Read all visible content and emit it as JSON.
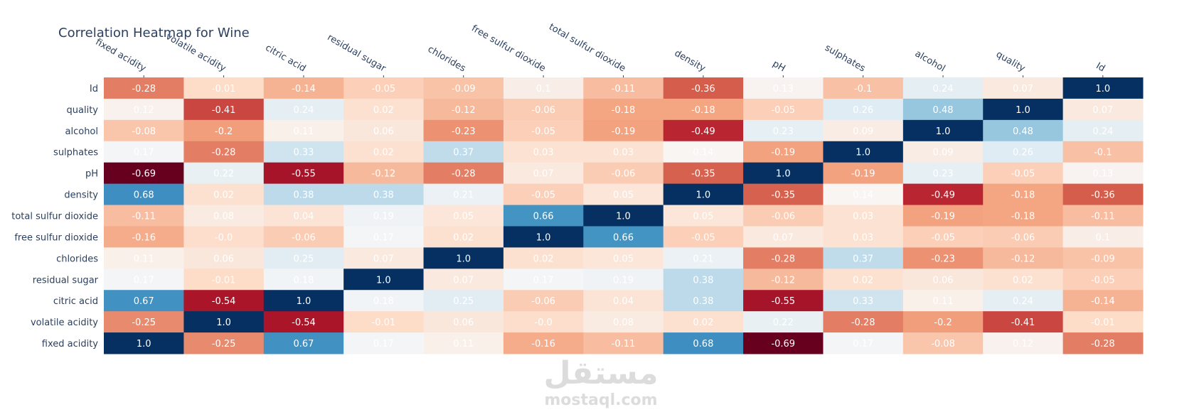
{
  "chart_data": {
    "type": "heatmap",
    "title": "Correlation Heatmap for Wine",
    "xlabel": "",
    "ylabel": "",
    "x": [
      "fixed acidity",
      "volatile acidity",
      "citric acid",
      "residual sugar",
      "chlorides",
      "free sulfur dioxide",
      "total sulfur dioxide",
      "density",
      "pH",
      "sulphates",
      "alcohol",
      "quality",
      "Id"
    ],
    "y": [
      "Id",
      "quality",
      "alcohol",
      "sulphates",
      "pH",
      "density",
      "total sulfur dioxide",
      "free sulfur dioxide",
      "chlorides",
      "residual sugar",
      "citric acid",
      "volatile acidity",
      "fixed acidity"
    ],
    "z": [
      [
        -0.28,
        -0.01,
        -0.14,
        -0.05,
        -0.09,
        0.1,
        -0.11,
        -0.36,
        0.13,
        -0.1,
        0.24,
        0.07,
        1.0
      ],
      [
        0.12,
        -0.41,
        0.24,
        0.02,
        -0.12,
        -0.06,
        -0.18,
        -0.18,
        -0.05,
        0.26,
        0.48,
        1.0,
        0.07
      ],
      [
        -0.08,
        -0.2,
        0.11,
        0.06,
        -0.23,
        -0.05,
        -0.19,
        -0.49,
        0.23,
        0.09,
        1.0,
        0.48,
        0.24
      ],
      [
        0.17,
        -0.28,
        0.33,
        0.02,
        0.37,
        0.03,
        0.03,
        0.14,
        -0.19,
        1.0,
        0.09,
        0.26,
        -0.1
      ],
      [
        -0.69,
        0.22,
        -0.55,
        -0.12,
        -0.28,
        0.07,
        -0.06,
        -0.35,
        1.0,
        -0.19,
        0.23,
        -0.05,
        0.13
      ],
      [
        0.68,
        0.02,
        0.38,
        0.38,
        0.21,
        -0.05,
        0.05,
        1.0,
        -0.35,
        0.14,
        -0.49,
        -0.18,
        -0.36
      ],
      [
        -0.11,
        0.08,
        0.04,
        0.19,
        0.05,
        0.66,
        1.0,
        0.05,
        -0.06,
        0.03,
        -0.19,
        -0.18,
        -0.11
      ],
      [
        -0.16,
        -0.0,
        -0.06,
        0.17,
        0.02,
        1.0,
        0.66,
        -0.05,
        0.07,
        0.03,
        -0.05,
        -0.06,
        0.1
      ],
      [
        0.11,
        0.06,
        0.25,
        0.07,
        1.0,
        0.02,
        0.05,
        0.21,
        -0.28,
        0.37,
        -0.23,
        -0.12,
        -0.09
      ],
      [
        0.17,
        -0.01,
        0.18,
        1.0,
        0.07,
        0.17,
        0.19,
        0.38,
        -0.12,
        0.02,
        0.06,
        0.02,
        -0.05
      ],
      [
        0.67,
        -0.54,
        1.0,
        0.18,
        0.25,
        -0.06,
        0.04,
        0.38,
        -0.55,
        0.33,
        0.11,
        0.24,
        -0.14
      ],
      [
        -0.25,
        1.0,
        -0.54,
        -0.01,
        0.06,
        -0.0,
        0.08,
        0.02,
        0.22,
        -0.28,
        -0.2,
        -0.41,
        -0.01
      ],
      [
        1.0,
        -0.25,
        0.67,
        0.17,
        0.11,
        -0.16,
        -0.11,
        0.68,
        -0.69,
        0.17,
        -0.08,
        0.12,
        -0.28
      ]
    ],
    "text": [
      [
        "-0.28",
        "-0.01",
        "-0.14",
        "-0.05",
        "-0.09",
        "0.1",
        "-0.11",
        "-0.36",
        "0.13",
        "-0.1",
        "0.24",
        "0.07",
        "1.0"
      ],
      [
        "0.12",
        "-0.41",
        "0.24",
        "0.02",
        "-0.12",
        "-0.06",
        "-0.18",
        "-0.18",
        "-0.05",
        "0.26",
        "0.48",
        "1.0",
        "0.07"
      ],
      [
        "-0.08",
        "-0.2",
        "0.11",
        "0.06",
        "-0.23",
        "-0.05",
        "-0.19",
        "-0.49",
        "0.23",
        "0.09",
        "1.0",
        "0.48",
        "0.24"
      ],
      [
        "0.17",
        "-0.28",
        "0.33",
        "0.02",
        "0.37",
        "0.03",
        "0.03",
        "0.14",
        "-0.19",
        "1.0",
        "0.09",
        "0.26",
        "-0.1"
      ],
      [
        "-0.69",
        "0.22",
        "-0.55",
        "-0.12",
        "-0.28",
        "0.07",
        "-0.06",
        "-0.35",
        "1.0",
        "-0.19",
        "0.23",
        "-0.05",
        "0.13"
      ],
      [
        "0.68",
        "0.02",
        "0.38",
        "0.38",
        "0.21",
        "-0.05",
        "0.05",
        "1.0",
        "-0.35",
        "0.14",
        "-0.49",
        "-0.18",
        "-0.36"
      ],
      [
        "-0.11",
        "0.08",
        "0.04",
        "0.19",
        "0.05",
        "0.66",
        "1.0",
        "0.05",
        "-0.06",
        "0.03",
        "-0.19",
        "-0.18",
        "-0.11"
      ],
      [
        "-0.16",
        "-0.0",
        "-0.06",
        "0.17",
        "0.02",
        "1.0",
        "0.66",
        "-0.05",
        "0.07",
        "0.03",
        "-0.05",
        "-0.06",
        "0.1"
      ],
      [
        "0.11",
        "0.06",
        "0.25",
        "0.07",
        "1.0",
        "0.02",
        "0.05",
        "0.21",
        "-0.28",
        "0.37",
        "-0.23",
        "-0.12",
        "-0.09"
      ],
      [
        "0.17",
        "-0.01",
        "0.18",
        "1.0",
        "0.07",
        "0.17",
        "0.19",
        "0.38",
        "-0.12",
        "0.02",
        "0.06",
        "0.02",
        "-0.05"
      ],
      [
        "0.67",
        "-0.54",
        "1.0",
        "0.18",
        "0.25",
        "-0.06",
        "0.04",
        "0.38",
        "-0.55",
        "0.33",
        "0.11",
        "0.24",
        "-0.14"
      ],
      [
        "-0.25",
        "1.0",
        "-0.54",
        "-0.01",
        "0.06",
        "-0.0",
        "0.08",
        "0.02",
        "0.22",
        "-0.28",
        "-0.2",
        "-0.41",
        "-0.01"
      ],
      [
        "1.0",
        "-0.25",
        "0.67",
        "0.17",
        "0.11",
        "-0.16",
        "-0.11",
        "0.68",
        "-0.69",
        "0.17",
        "-0.08",
        "0.12",
        "-0.28"
      ]
    ],
    "zrange": [
      -0.69,
      1.0
    ],
    "colorscale": "RdBu",
    "colorscale_stops": [
      [
        0.0,
        "#67001f"
      ],
      [
        0.1,
        "#b2182b"
      ],
      [
        0.2,
        "#d6604d"
      ],
      [
        0.3,
        "#f4a582"
      ],
      [
        0.4,
        "#fddbc7"
      ],
      [
        0.5,
        "#f7f7f7"
      ],
      [
        0.6,
        "#d1e5f0"
      ],
      [
        0.7,
        "#92c5de"
      ],
      [
        0.8,
        "#4393c3"
      ],
      [
        0.9,
        "#2166ac"
      ],
      [
        1.0,
        "#053061"
      ]
    ],
    "show_colorbar": false,
    "grid": false
  },
  "watermark": {
    "arabic": "مستقل",
    "latin": "mostaql.com"
  }
}
